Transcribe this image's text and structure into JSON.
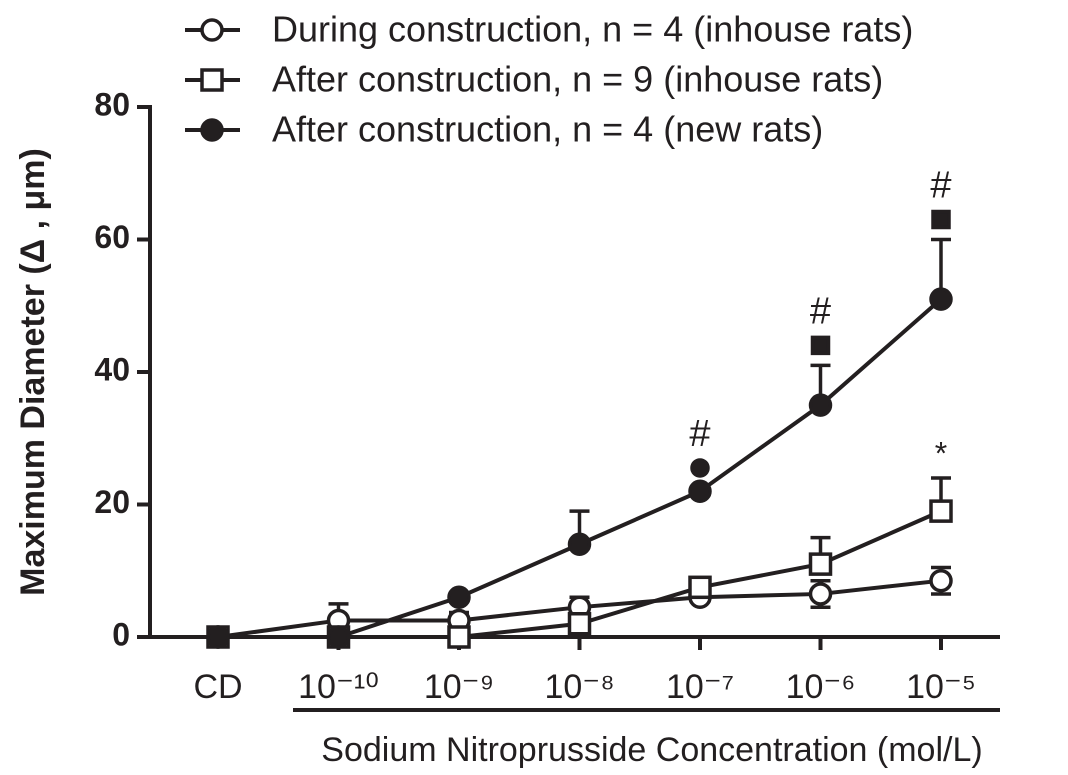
{
  "chart_data": {
    "type": "line",
    "y_label": "Maximum Diameter (Δ , μm)",
    "x_label": "Sodium Nitroprusside Concentration (mol/L)",
    "categories": [
      "CD",
      "10⁻¹⁰",
      "10⁻⁹",
      "10⁻⁸",
      "10⁻⁷",
      "10⁻⁶",
      "10⁻⁵"
    ],
    "ylim": [
      0,
      80
    ],
    "yticks": [
      0,
      20,
      40,
      60,
      80
    ],
    "legend": "top",
    "series": [
      {
        "name": "During construction, n = 4  (inhouse rats)",
        "color": "#231f20",
        "marker": "open-circle",
        "error_direction": "both",
        "values": [
          0,
          2.5,
          2.5,
          4.5,
          6,
          6.5,
          8.5
        ],
        "errors": [
          0,
          2.5,
          1.2,
          1.5,
          0.5,
          2,
          2
        ]
      },
      {
        "name": "After construction, n = 9  (inhouse rats)",
        "color": "#231f20",
        "marker": "open-square",
        "error_direction": "up",
        "values": [
          0,
          0,
          0,
          2,
          7.5,
          11,
          19
        ],
        "errors": [
          0,
          0,
          0,
          0,
          1,
          4,
          5
        ]
      },
      {
        "name": "After construction, n = 4  (new rats)",
        "color": "#231f20",
        "marker": "filled-circle",
        "error_direction": "up",
        "values": [
          0,
          0,
          6,
          14,
          22,
          35,
          51
        ],
        "errors": [
          0,
          0,
          0.5,
          5,
          0.5,
          6,
          9
        ]
      }
    ],
    "annotations": [
      {
        "text": "#",
        "category_index": 4,
        "series_index": 2,
        "symbol": "filled-circle"
      },
      {
        "text": "#",
        "category_index": 5,
        "series_index": 2,
        "symbol": "filled-square"
      },
      {
        "text": "#",
        "category_index": 6,
        "series_index": 2,
        "symbol": "filled-square"
      },
      {
        "text": "*",
        "category_index": 6,
        "series_index": 1
      }
    ]
  }
}
